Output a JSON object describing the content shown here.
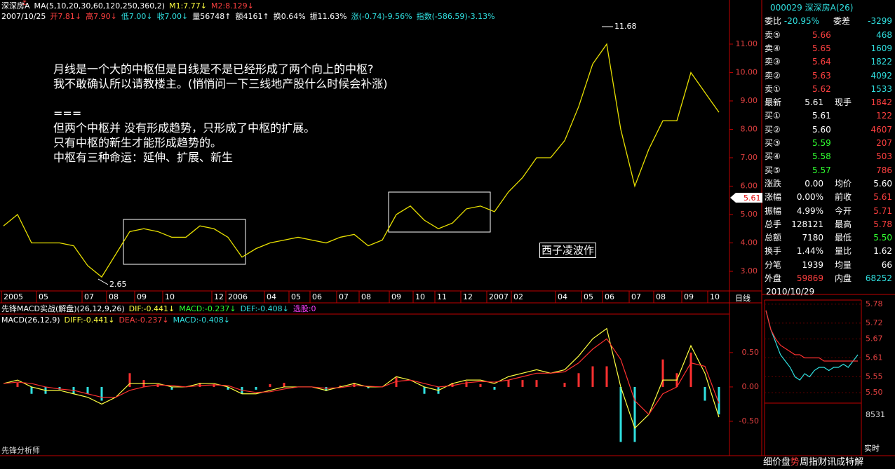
{
  "header": {
    "line1": [
      "深深房A",
      "MA(5,10,20,30,60,120,250,360,2)",
      "M1:7.77↓",
      "M2:8.129↓"
    ],
    "line2": [
      "2007/10/25",
      "开7.81↓",
      "高7.90↓",
      "低7.00↓",
      "收7.00↓",
      "量56748↑",
      "额4161↑",
      "换0.64%",
      "振11.63%",
      "涨(-0.74)-9.56%",
      "指数(-586.59)-3.13%"
    ]
  },
  "note": {
    "lines": [
      "月线是一个大的中枢但是日线是不是已经形成了两个向上的中枢?",
      "我不敢确认所以请教楼主。(悄悄问一下三线地产股什么时候会补涨)",
      "",
      "===",
      "但两个中枢并 没有形成趋势，只形成了中枢的扩展。",
      "只有中枢的新生才能形成趋势的。",
      "中枢有三种命运：延伸、扩展、新生"
    ]
  },
  "signature": "西子凌波作",
  "price_labels": {
    "high": "11.68",
    "low": "2.65",
    "last": "5.61"
  },
  "period": "日线",
  "dates": [
    "2005",
    "05",
    "07",
    "08",
    "09",
    "10",
    "12",
    "2006",
    "04",
    "05",
    "06",
    "07",
    "08",
    "09",
    "10",
    "11",
    "12",
    "2007",
    "02",
    "04",
    "05",
    "06",
    "07",
    "08",
    "09",
    "10"
  ],
  "macd_header": {
    "line1": [
      "先锋MACD实战(解盘)(26,12,9,26)",
      "DIF:-0.441↓",
      "MACD:-0.237↓",
      "DEF:-0.408↓",
      "选股:0"
    ],
    "line2": [
      "MACD(26,12,9)",
      "DIFF:-0.441↓",
      "DEA:-0.237↓",
      "MACD:-0.408↓"
    ]
  },
  "footer": "先锋分析师",
  "chart_data": [
    {
      "type": "line",
      "color": "#e8e000",
      "values": [
        4.6,
        5.0,
        4.0,
        4.0,
        4.0,
        3.9,
        3.2,
        2.8,
        3.6,
        4.4,
        4.5,
        4.4,
        4.2,
        4.2,
        4.6,
        4.5,
        4.2,
        3.5,
        3.8,
        4.0,
        4.1,
        4.2,
        4.1,
        4.0,
        4.2,
        4.3,
        3.9,
        4.1,
        5.0,
        5.3,
        4.8,
        4.5,
        4.7,
        5.2,
        5.3,
        5.1,
        5.8,
        6.3,
        7.0,
        7.0,
        7.6,
        8.8,
        10.3,
        11.0,
        8.0,
        6.0,
        7.3,
        8.3,
        8.3,
        10.0,
        9.3,
        8.6
      ],
      "ylim": [
        2.31,
        12.06
      ],
      "yticks": [
        {
          "value": 3,
          "label": "3.00"
        },
        {
          "value": 4,
          "label": "4.00"
        },
        {
          "value": 5,
          "label": "5.00"
        },
        {
          "value": 6,
          "label": "6.00"
        },
        {
          "value": 7,
          "label": "7.00"
        },
        {
          "value": 8,
          "label": "8.00"
        },
        {
          "value": 9,
          "label": "9.00"
        },
        {
          "value": 10,
          "label": "10.00"
        },
        {
          "value": 11,
          "label": "11.00"
        }
      ]
    },
    {
      "type": "macd",
      "series": [
        {
          "color": "#ffff40",
          "values": [
            0.05,
            0.1,
            0.0,
            -0.05,
            -0.05,
            -0.1,
            -0.15,
            -0.25,
            -0.15,
            0.05,
            0.05,
            0.05,
            0.0,
            0.0,
            0.05,
            0.05,
            0.0,
            -0.1,
            -0.1,
            -0.05,
            0.0,
            0.0,
            0.0,
            -0.05,
            0.0,
            0.05,
            0.0,
            0.0,
            0.15,
            0.1,
            0.0,
            -0.05,
            0.05,
            0.1,
            0.1,
            0.05,
            0.15,
            0.2,
            0.25,
            0.2,
            0.25,
            0.45,
            0.7,
            0.85,
            0.0,
            -0.6,
            -0.4,
            0.1,
            0.1,
            0.6,
            0.2,
            -0.44
          ]
        },
        {
          "color": "#ff3030",
          "values": [
            0.05,
            0.07,
            0.05,
            0.0,
            -0.03,
            -0.05,
            -0.1,
            -0.15,
            -0.15,
            -0.05,
            0.0,
            0.03,
            0.02,
            0.0,
            0.02,
            0.03,
            0.02,
            -0.05,
            -0.08,
            -0.07,
            -0.03,
            0.0,
            0.0,
            -0.02,
            -0.01,
            0.02,
            0.01,
            0.0,
            0.08,
            0.1,
            0.05,
            0.0,
            0.02,
            0.06,
            0.08,
            0.07,
            0.1,
            0.15,
            0.2,
            0.2,
            0.22,
            0.35,
            0.55,
            0.7,
            0.4,
            -0.2,
            -0.4,
            -0.1,
            0.0,
            0.35,
            0.3,
            -0.24
          ]
        }
      ],
      "bars": [
        0,
        0.06,
        -0.1,
        -0.1,
        -0.04,
        -0.1,
        -0.1,
        -0.2,
        0,
        0.2,
        0.1,
        0.04,
        -0.04,
        0,
        0.06,
        0.04,
        -0.04,
        -0.1,
        -0.04,
        0.04,
        0.06,
        0,
        0,
        -0.06,
        0.02,
        0.06,
        -0.02,
        0,
        0.14,
        0,
        -0.1,
        -0.1,
        0.06,
        0.08,
        0.04,
        -0.04,
        0.1,
        0.1,
        0.1,
        0,
        0.06,
        0.2,
        0.3,
        0.3,
        -0.8,
        -0.8,
        0,
        0.4,
        0.2,
        0.5,
        -0.2,
        -0.4
      ],
      "ylim": [
        -1.0,
        1.06
      ],
      "yticks": [
        {
          "value": 0.5,
          "label": "0.50"
        },
        {
          "value": 0,
          "label": "0.00"
        },
        {
          "value": -0.5,
          "label": "-0.50"
        }
      ]
    },
    {
      "type": "intraday",
      "series": [
        {
          "color": "#30e0e0",
          "values": [
            5.76,
            5.7,
            5.66,
            5.62,
            5.6,
            5.58,
            5.55,
            5.54,
            5.56,
            5.55,
            5.57,
            5.58,
            5.58,
            5.57,
            5.58,
            5.58,
            5.59,
            5.58,
            5.6,
            5.62
          ]
        },
        {
          "color": "#ff3030",
          "values": [
            5.76,
            5.7,
            5.67,
            5.65,
            5.64,
            5.63,
            5.62,
            5.62,
            5.61,
            5.61,
            5.61,
            5.61,
            5.6,
            5.6,
            5.6,
            5.6,
            5.6,
            5.6,
            5.6,
            5.6
          ]
        }
      ],
      "ylim": [
        5.478,
        5.793
      ],
      "yticks": [
        5.78,
        5.72,
        5.67,
        5.61,
        5.55,
        {
          "value": 5.5,
          "label": "5.50"
        }
      ],
      "volume_max": "8531",
      "mode": "实时"
    }
  ],
  "quote": {
    "title": "000029 深深房A(26)",
    "ratio": [
      "委比",
      "-20.95%",
      "委差",
      "-3299"
    ],
    "sells": [
      [
        "卖⑤",
        "5.66",
        "468"
      ],
      [
        "卖④",
        "5.65",
        "1609"
      ],
      [
        "卖③",
        "5.64",
        "1822"
      ],
      [
        "卖②",
        "5.63",
        "4092"
      ],
      [
        "卖①",
        "5.62",
        "1533"
      ]
    ],
    "latest": [
      "最新",
      "5.61",
      "现手",
      "1842"
    ],
    "buys": [
      [
        "买①",
        "5.61",
        "122"
      ],
      [
        "买②",
        "5.60",
        "4607"
      ],
      [
        "买③",
        "5.59",
        "207"
      ],
      [
        "买④",
        "5.58",
        "503"
      ],
      [
        "买⑤",
        "5.57",
        "786"
      ]
    ],
    "stats": [
      [
        "涨跌",
        "0.00",
        "均价",
        "5.60"
      ],
      [
        "涨幅",
        "0.00%",
        "前收",
        "5.61"
      ],
      [
        "振幅",
        "4.99%",
        "今开",
        "5.71"
      ],
      [
        "总手",
        "128121",
        "最高",
        "5.78"
      ],
      [
        "总额",
        "7180",
        "最低",
        "5.50"
      ],
      [
        "换手",
        "1.44%",
        "量比",
        "1.62"
      ],
      [
        "分笔",
        "1939",
        "均量",
        "66"
      ]
    ],
    "outer": [
      "外盘",
      "59869",
      "内盘",
      "68252"
    ],
    "date": "2010/10/29"
  },
  "tabs": [
    "细",
    "价",
    "盘",
    "势",
    "周",
    "指",
    "财",
    "讯",
    "成",
    "特",
    "解"
  ]
}
